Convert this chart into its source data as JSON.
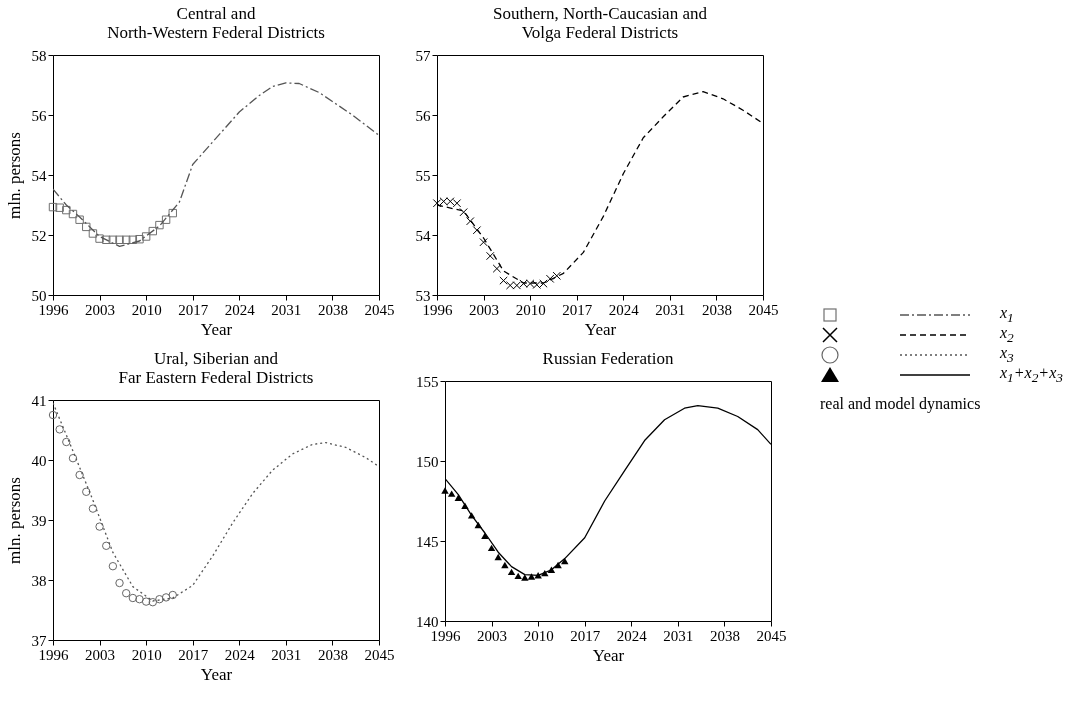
{
  "chart_data": [
    {
      "type": "line",
      "title": "Central and\nNorth-Western Federal Districts",
      "xlabel": "Year",
      "ylabel": "mln. persons",
      "xlim": [
        1996,
        2045
      ],
      "xticks": [
        1996,
        2003,
        2010,
        2017,
        2024,
        2031,
        2038,
        2045
      ],
      "ylim": [
        50,
        58
      ],
      "yticks": [
        50,
        52,
        54,
        56,
        58
      ],
      "legend": "right",
      "series": [
        {
          "type": "scatter",
          "marker": "square",
          "color": "#707070",
          "x": [
            1996,
            1997,
            1998,
            1999,
            2000,
            2001,
            2002,
            2003,
            2004,
            2005,
            2006,
            2007,
            2008,
            2009,
            2010,
            2011,
            2012,
            2013,
            2014
          ],
          "values": [
            52.93,
            52.91,
            52.83,
            52.7,
            52.51,
            52.27,
            52.05,
            51.88,
            51.84,
            51.84,
            51.84,
            51.84,
            51.84,
            51.86,
            51.95,
            52.13,
            52.33,
            52.51,
            52.73
          ]
        },
        {
          "name": "x$_{1}$",
          "line_style": "dashdot",
          "color": "#555555",
          "x": [
            1996,
            1998,
            2000,
            2003,
            2006,
            2009,
            2012,
            2015,
            2017,
            2020,
            2024,
            2027,
            2029,
            2031,
            2033,
            2036,
            2038,
            2041,
            2045
          ],
          "values": [
            53.53,
            53.0,
            52.6,
            51.95,
            51.62,
            51.8,
            52.3,
            53.1,
            54.35,
            55.1,
            56.1,
            56.65,
            56.95,
            57.07,
            57.05,
            56.75,
            56.45,
            56.0,
            55.32
          ]
        }
      ]
    },
    {
      "type": "line",
      "title": "Southern, North-Caucasian and\nVolga Federal Districts",
      "xlabel": "Year",
      "xlim": [
        1996,
        2045
      ],
      "xticks": [
        1996,
        2003,
        2010,
        2017,
        2024,
        2031,
        2038,
        2045
      ],
      "ylim": [
        53,
        57
      ],
      "yticks": [
        53,
        54,
        55,
        56,
        57
      ],
      "legend": "right",
      "series": [
        {
          "type": "scatter",
          "marker": "cross",
          "color": "#000000",
          "x": [
            1996,
            1997,
            1998,
            1999,
            2000,
            2001,
            2002,
            2003,
            2004,
            2005,
            2006,
            2007,
            2008,
            2009,
            2010,
            2011,
            2012,
            2013,
            2014
          ],
          "values": [
            54.53,
            54.56,
            54.56,
            54.53,
            54.38,
            54.23,
            54.08,
            53.88,
            53.65,
            53.44,
            53.24,
            53.16,
            53.16,
            53.19,
            53.19,
            53.17,
            53.19,
            53.27,
            53.32
          ]
        },
        {
          "name": "x$_{2}$",
          "line_style": "dashed",
          "color": "#000000",
          "x": [
            1996,
            2000,
            2003,
            2006,
            2009,
            2012,
            2015,
            2018,
            2021,
            2024,
            2027,
            2030,
            2033,
            2036,
            2039,
            2042,
            2045
          ],
          "values": [
            54.5,
            54.4,
            53.95,
            53.4,
            53.2,
            53.2,
            53.36,
            53.71,
            54.31,
            55.02,
            55.62,
            55.97,
            56.3,
            56.39,
            56.27,
            56.08,
            55.86
          ]
        }
      ]
    },
    {
      "type": "line",
      "title": "Ural, Siberian and\nFar Eastern Federal Districts",
      "xlabel": "Year",
      "ylabel": "mln. persons",
      "xlim": [
        1996,
        2045
      ],
      "xticks": [
        1996,
        2003,
        2010,
        2017,
        2024,
        2031,
        2038,
        2045
      ],
      "ylim": [
        37,
        41
      ],
      "yticks": [
        37,
        38,
        39,
        40,
        41
      ],
      "legend": "right",
      "series": [
        {
          "type": "scatter",
          "marker": "circle",
          "color": "#666666",
          "x": [
            1996,
            1997,
            1998,
            1999,
            2000,
            2001,
            2002,
            2003,
            2004,
            2005,
            2006,
            2007,
            2008,
            2009,
            2010,
            2011,
            2012,
            2013,
            2014
          ],
          "values": [
            40.75,
            40.51,
            40.3,
            40.03,
            39.75,
            39.47,
            39.19,
            38.89,
            38.57,
            38.23,
            37.95,
            37.78,
            37.7,
            37.68,
            37.64,
            37.63,
            37.68,
            37.71,
            37.75
          ]
        },
        {
          "name": "x$_{3}$",
          "line_style": "dotted",
          "color": "#555555",
          "x": [
            1996,
            1999,
            2002,
            2005,
            2008,
            2011,
            2014,
            2017,
            2020,
            2023,
            2026,
            2029,
            2032,
            2035,
            2037,
            2040,
            2043,
            2045
          ],
          "values": [
            40.95,
            40.15,
            39.33,
            38.46,
            37.89,
            37.65,
            37.7,
            37.91,
            38.4,
            38.95,
            39.44,
            39.83,
            40.1,
            40.26,
            40.29,
            40.21,
            40.04,
            39.89
          ]
        }
      ]
    },
    {
      "type": "line",
      "title": "Russian Federation",
      "xlabel": "Year",
      "xlim": [
        1996,
        2045
      ],
      "xticks": [
        1996,
        2003,
        2010,
        2017,
        2024,
        2031,
        2038,
        2045
      ],
      "ylim": [
        140,
        155
      ],
      "yticks": [
        140,
        145,
        150,
        155
      ],
      "legend": "right",
      "legend_title": "real and model dynamics",
      "series": [
        {
          "type": "scatter",
          "marker": "triangle",
          "color": "#000000",
          "x": [
            1996,
            1997,
            1998,
            1999,
            2000,
            2001,
            2002,
            2003,
            2004,
            2005,
            2006,
            2007,
            2008,
            2009,
            2010,
            2011,
            2012,
            2013,
            2014
          ],
          "values": [
            148.16,
            147.96,
            147.7,
            147.2,
            146.6,
            146.0,
            145.33,
            144.57,
            144.0,
            143.5,
            143.07,
            142.82,
            142.72,
            142.78,
            142.86,
            142.99,
            143.2,
            143.5,
            143.75
          ]
        },
        {
          "name": "x$_{1}$+x$_{2}$+x$_{3}$",
          "line_style": "solid",
          "color": "#000000",
          "x": [
            1996,
            1998,
            2000,
            2002,
            2004,
            2006,
            2008,
            2010,
            2012,
            2014,
            2017,
            2020,
            2023,
            2026,
            2029,
            2032,
            2034,
            2037,
            2040,
            2043,
            2045
          ],
          "values": [
            148.9,
            147.9,
            146.6,
            145.5,
            144.3,
            143.4,
            142.9,
            142.85,
            143.2,
            143.9,
            145.2,
            147.5,
            149.4,
            151.28,
            152.58,
            153.3,
            153.46,
            153.3,
            152.78,
            151.96,
            151.04
          ]
        }
      ]
    }
  ]
}
